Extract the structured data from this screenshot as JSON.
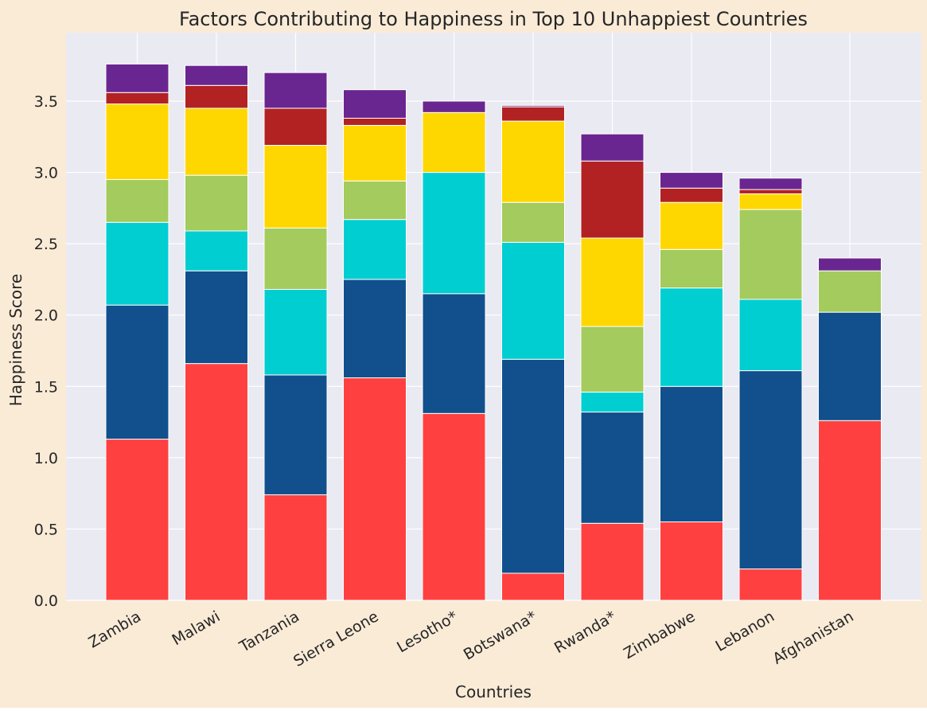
{
  "chart_data": {
    "type": "bar",
    "stacked": true,
    "title": "Factors Contributing to Happiness in Top 10 Unhappiest Countries",
    "xlabel": "Countries",
    "ylabel": "Happiness Score",
    "ylim": [
      0,
      3.98
    ],
    "yticks": [
      0.0,
      0.5,
      1.0,
      1.5,
      2.0,
      2.5,
      3.0,
      3.5
    ],
    "ytick_labels": [
      "0.0",
      "0.5",
      "1.0",
      "1.5",
      "2.0",
      "2.5",
      "3.0",
      "3.5"
    ],
    "grid": true,
    "legend": "none",
    "categories": [
      "Zambia",
      "Malawi",
      "Tanzania",
      "Sierra Leone",
      "Lesotho*",
      "Botswana*",
      "Rwanda*",
      "Zimbabwe",
      "Lebanon",
      "Afghanistan"
    ],
    "series": [
      {
        "color": "#FF4040",
        "values": [
          1.13,
          1.66,
          0.74,
          1.56,
          1.31,
          0.19,
          0.54,
          0.55,
          0.22,
          1.26
        ]
      },
      {
        "color": "#11508C",
        "values": [
          0.94,
          0.65,
          0.84,
          0.69,
          0.84,
          1.5,
          0.78,
          0.95,
          1.39,
          0.76
        ]
      },
      {
        "color": "#00CED1",
        "values": [
          0.58,
          0.28,
          0.6,
          0.42,
          0.85,
          0.82,
          0.14,
          0.69,
          0.5,
          0.0
        ]
      },
      {
        "color": "#A3CB5D",
        "values": [
          0.3,
          0.39,
          0.43,
          0.27,
          0.0,
          0.28,
          0.46,
          0.27,
          0.63,
          0.29
        ]
      },
      {
        "color": "#FFD700",
        "values": [
          0.53,
          0.47,
          0.58,
          0.39,
          0.42,
          0.57,
          0.62,
          0.33,
          0.11,
          0.0
        ]
      },
      {
        "color": "#B22222",
        "values": [
          0.08,
          0.16,
          0.26,
          0.05,
          0.0,
          0.1,
          0.54,
          0.1,
          0.03,
          0.0
        ]
      },
      {
        "color": "#6A2690",
        "values": [
          0.2,
          0.14,
          0.25,
          0.2,
          0.08,
          0.01,
          0.19,
          0.11,
          0.08,
          0.09
        ]
      }
    ]
  }
}
